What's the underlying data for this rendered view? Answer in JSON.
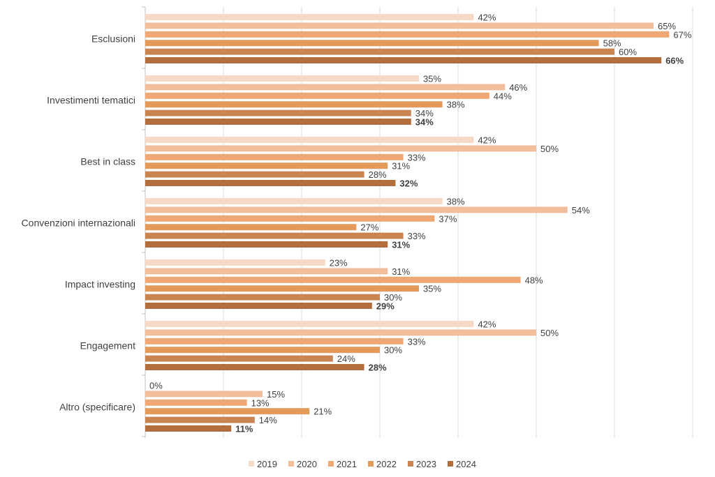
{
  "chart_data": {
    "type": "bar",
    "orientation": "horizontal",
    "title": "",
    "xlabel": "",
    "ylabel": "",
    "xlim": [
      0,
      70
    ],
    "grid": true,
    "legend_position": "bottom",
    "categories": [
      "Esclusioni",
      "Investimenti tematici",
      "Best in class",
      "Convenzioni internazionali",
      "Impact investing",
      "Engagement",
      "Altro (specificare)"
    ],
    "series": [
      {
        "name": "2019",
        "color": "#F6D9C6",
        "values": [
          42,
          35,
          42,
          38,
          23,
          42,
          0
        ],
        "labels": [
          "42%",
          "35%",
          "42%",
          "38%",
          "23%",
          "42%",
          "0%"
        ]
      },
      {
        "name": "2020",
        "color": "#F0BE9C",
        "values": [
          65,
          46,
          50,
          54,
          31,
          50,
          15
        ],
        "labels": [
          "65%",
          "46%",
          "50%",
          "54%",
          "31%",
          "50%",
          "15%"
        ]
      },
      {
        "name": "2021",
        "color": "#EDA874",
        "values": [
          67,
          44,
          33,
          37,
          48,
          33,
          13
        ],
        "labels": [
          "67%",
          "44%",
          "33%",
          "37%",
          "48%",
          "33%",
          "13%"
        ]
      },
      {
        "name": "2022",
        "color": "#E39A5B",
        "values": [
          58,
          38,
          31,
          27,
          35,
          30,
          21
        ],
        "labels": [
          "58%",
          "38%",
          "31%",
          "27%",
          "35%",
          "30%",
          "21%"
        ]
      },
      {
        "name": "2023",
        "color": "#C98452",
        "values": [
          60,
          34,
          28,
          33,
          30,
          24,
          14
        ],
        "labels": [
          "60%",
          "34%",
          "28%",
          "33%",
          "30%",
          "24%",
          "14%"
        ]
      },
      {
        "name": "2024",
        "color": "#B26F3D",
        "values": [
          66,
          34,
          32,
          31,
          29,
          28,
          11
        ],
        "labels": [
          "66%",
          "34%",
          "32%",
          "31%",
          "29%",
          "28%",
          "11%"
        ],
        "bold_labels": true
      }
    ]
  }
}
